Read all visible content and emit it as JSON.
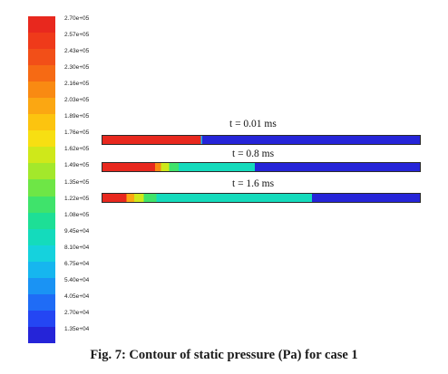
{
  "chart_data": {
    "type": "heatmap",
    "title": "",
    "xlabel": "",
    "ylabel": "",
    "colorbar": {
      "labels": [
        "2.70e+05",
        "2.57e+05",
        "2.43e+05",
        "2.30e+05",
        "2.16e+05",
        "2.03e+05",
        "1.89e+05",
        "1.76e+05",
        "1.62e+05",
        "1.49e+05",
        "1.35e+05",
        "1.22e+05",
        "1.08e+05",
        "9.45e+04",
        "8.10e+04",
        "6.75e+04",
        "5.40e+04",
        "4.05e+04",
        "2.70e+04",
        "1.35e+04"
      ],
      "values": [
        270000,
        257000,
        243000,
        230000,
        216000,
        203000,
        189000,
        176000,
        162000,
        149000,
        135000,
        122000,
        108000,
        94500,
        81000,
        67500,
        54000,
        40500,
        27000,
        13500
      ],
      "colors": [
        "#e8281e",
        "#ef3a1a",
        "#f24f18",
        "#f66a14",
        "#f98a12",
        "#fba712",
        "#fcc40f",
        "#f7df12",
        "#cfe81a",
        "#a3e82b",
        "#6ee646",
        "#3fe36b",
        "#1ddf96",
        "#14dbbc",
        "#15d2dd",
        "#16b6ef",
        "#1a93f4",
        "#1f6cf6",
        "#2446f3",
        "#2524d8"
      ]
    },
    "series": [
      {
        "name": "t = 0.01 ms",
        "red_fraction": 0.31,
        "segments": [
          {
            "from": 0.0,
            "to": 0.31,
            "color": "#e8281e"
          },
          {
            "from": 0.31,
            "to": 0.315,
            "color": "#16b6ef"
          },
          {
            "from": 0.315,
            "to": 1.0,
            "color": "#2524d8"
          }
        ]
      },
      {
        "name": "t = 0.8 ms",
        "red_fraction": 0.18,
        "segments": [
          {
            "from": 0.0,
            "to": 0.165,
            "color": "#e8281e"
          },
          {
            "from": 0.165,
            "to": 0.185,
            "color": "#f98a12"
          },
          {
            "from": 0.185,
            "to": 0.21,
            "color": "#cfe81a"
          },
          {
            "from": 0.21,
            "to": 0.24,
            "color": "#3fe36b"
          },
          {
            "from": 0.24,
            "to": 0.48,
            "color": "#14dbbc"
          },
          {
            "from": 0.48,
            "to": 1.0,
            "color": "#2524d8"
          }
        ]
      },
      {
        "name": "t = 1.6 ms",
        "red_fraction": 0.08,
        "segments": [
          {
            "from": 0.0,
            "to": 0.075,
            "color": "#e8281e"
          },
          {
            "from": 0.075,
            "to": 0.1,
            "color": "#fba712"
          },
          {
            "from": 0.1,
            "to": 0.13,
            "color": "#cfe81a"
          },
          {
            "from": 0.13,
            "to": 0.17,
            "color": "#3fe36b"
          },
          {
            "from": 0.17,
            "to": 0.66,
            "color": "#14dbbc"
          },
          {
            "from": 0.66,
            "to": 1.0,
            "color": "#2524d8"
          }
        ]
      }
    ]
  },
  "caption": "Fig. 7: Contour of static pressure (Pa) for case 1"
}
